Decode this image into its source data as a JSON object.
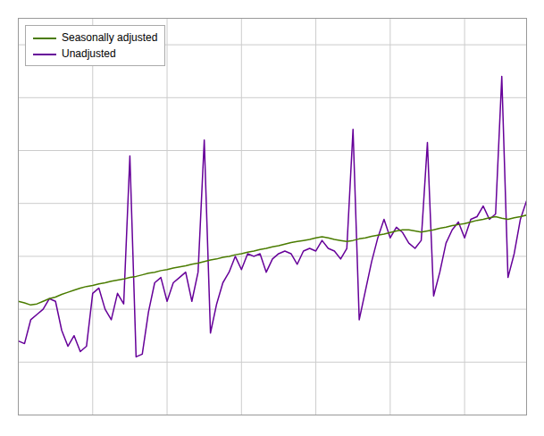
{
  "chart_data": {
    "type": "line",
    "series": [
      {
        "name": "Seasonally adjusted",
        "color": "#4a7c00",
        "values": [
          91.5,
          91.2,
          90.8,
          91.0,
          91.5,
          92.0,
          92.3,
          92.8,
          93.2,
          93.6,
          94.0,
          94.3,
          94.5,
          94.8,
          95.0,
          95.3,
          95.5,
          95.7,
          96.0,
          96.2,
          96.5,
          96.8,
          97.0,
          97.3,
          97.5,
          97.8,
          98.0,
          98.2,
          98.5,
          98.7,
          99.0,
          99.3,
          99.5,
          99.8,
          100.0,
          100.3,
          100.5,
          100.8,
          101.0,
          101.3,
          101.5,
          101.8,
          102.0,
          102.3,
          102.6,
          102.8,
          103.0,
          103.2,
          103.5,
          103.7,
          103.5,
          103.2,
          103.0,
          102.8,
          103.0,
          103.3,
          103.5,
          103.8,
          104.0,
          104.2,
          104.5,
          104.8,
          105.0,
          105.0,
          104.8,
          104.6,
          104.8,
          105.0,
          105.3,
          105.5,
          105.8,
          106.0,
          106.2,
          106.5,
          106.8,
          107.0,
          107.3,
          107.5,
          107.2,
          107.0,
          107.3,
          107.5,
          107.8
        ]
      },
      {
        "name": "Unadjusted",
        "color": "#660099",
        "values": [
          84.0,
          83.5,
          88.0,
          89.0,
          90.0,
          92.0,
          91.5,
          86.0,
          83.0,
          85.0,
          82.0,
          83.0,
          93.0,
          94.0,
          90.0,
          88.0,
          93.0,
          91.0,
          119.0,
          81.0,
          81.5,
          89.5,
          95.0,
          96.0,
          91.5,
          95.0,
          96.0,
          97.0,
          91.5,
          97.0,
          122.0,
          85.5,
          91.0,
          95.0,
          97.0,
          100.0,
          97.5,
          100.5,
          100.0,
          100.5,
          97.0,
          99.5,
          100.5,
          101.0,
          100.5,
          98.5,
          101.0,
          101.5,
          101.0,
          103.0,
          101.5,
          101.0,
          99.5,
          101.5,
          124.0,
          88.0,
          93.5,
          99.0,
          103.5,
          107.0,
          103.5,
          105.5,
          104.5,
          102.5,
          101.5,
          103.0,
          121.5,
          92.5,
          97.0,
          102.5,
          105.0,
          106.5,
          103.5,
          107.0,
          107.5,
          109.5,
          107.0,
          108.0,
          134.0,
          96.0,
          100.5,
          107.0,
          110.5
        ]
      }
    ],
    "xlim": [
      0,
      82
    ],
    "xticks": [
      0,
      12,
      24,
      36,
      48,
      60,
      72
    ],
    "ylim": [
      70,
      145
    ],
    "yticks": [
      70,
      80,
      90,
      100,
      110,
      120,
      130,
      140
    ],
    "grid": true,
    "legend": "upper left",
    "tick_labels": false
  }
}
